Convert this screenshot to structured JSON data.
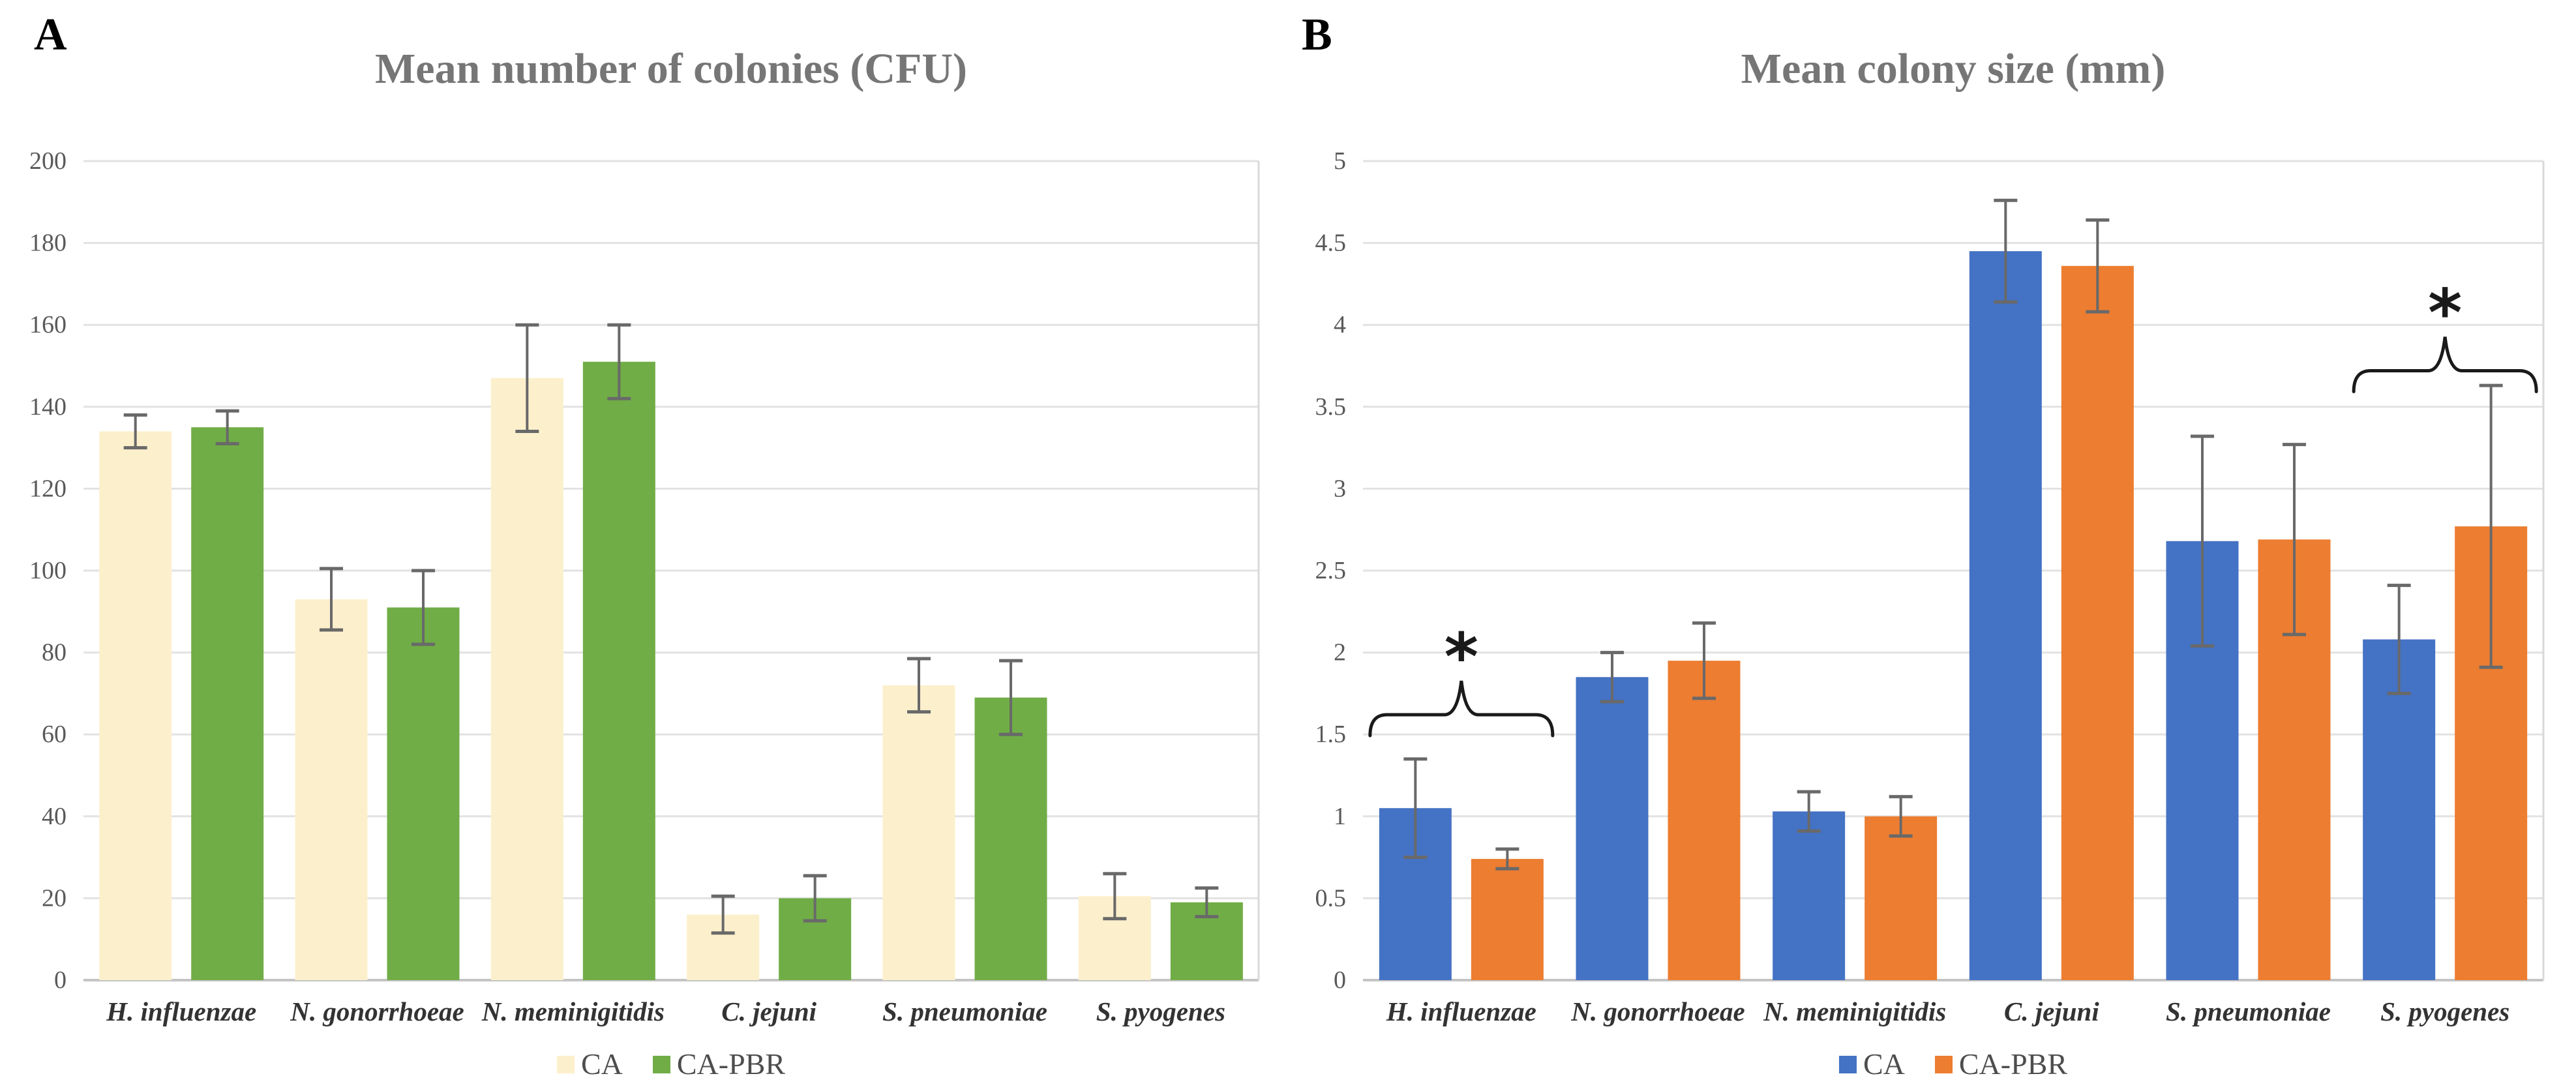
{
  "panels": [
    {
      "label": "A"
    },
    {
      "label": "B"
    }
  ],
  "chart_data": [
    {
      "type": "bar",
      "panel": "A",
      "title": "Mean number of colonies (CFU)",
      "title_color": "#767676",
      "categories": [
        "H. influenzae",
        "N. gonorrhoeae",
        "N. meminigitidis",
        "C. jejuni",
        "S. pneumoniae",
        "S. pyogenes"
      ],
      "series": [
        {
          "name": "CA",
          "color": "#FCF0CC",
          "values": [
            134,
            93,
            147,
            16,
            72,
            20.5
          ],
          "errors": [
            4,
            7.5,
            13,
            4.5,
            6.5,
            5.5
          ]
        },
        {
          "name": "CA-PBR",
          "color": "#70AD47",
          "values": [
            135,
            91,
            151,
            20,
            69,
            19
          ],
          "errors": [
            4,
            9,
            9,
            5.5,
            9,
            3.5
          ]
        }
      ],
      "ylabel": "",
      "xlabel": "",
      "ylim": [
        0,
        200
      ],
      "ytick_step": 20,
      "grid": true,
      "legend_position": "bottom",
      "annotations": []
    },
    {
      "type": "bar",
      "panel": "B",
      "title": "Mean colony size (mm)",
      "title_color": "#767676",
      "categories": [
        "H. influenzae",
        "N. gonorrhoeae",
        "N. meminigitidis",
        "C. jejuni",
        "S. pneumoniae",
        "S. pyogenes"
      ],
      "series": [
        {
          "name": "CA",
          "color": "#4472C4",
          "values": [
            1.05,
            1.85,
            1.03,
            4.45,
            2.68,
            2.08
          ],
          "errors": [
            0.3,
            0.15,
            0.12,
            0.31,
            0.64,
            0.33
          ]
        },
        {
          "name": "CA-PBR",
          "color": "#ED7D31",
          "values": [
            0.74,
            1.95,
            1.0,
            4.36,
            2.69,
            2.77
          ],
          "errors": [
            0.06,
            0.23,
            0.12,
            0.28,
            0.58,
            0.86
          ]
        }
      ],
      "ylabel": "",
      "xlabel": "",
      "ylim": [
        0,
        5
      ],
      "ytick_step": 0.5,
      "grid": true,
      "legend_position": "bottom",
      "annotations": [
        {
          "symbol": "*",
          "category": "H. influenzae",
          "category_index": 0,
          "brace_level": 1.62,
          "asterisk_level": 1.97
        },
        {
          "symbol": "*",
          "category": "S. pyogenes",
          "category_index": 5,
          "brace_level": 3.72,
          "asterisk_level": 4.07
        }
      ]
    }
  ],
  "style_colors": {
    "gridline": "#E2E2E2",
    "baseline": "#C4C4C4",
    "plot_right_border": "#D9D9D9",
    "error_bar": "#696969",
    "tick_label": "#595959",
    "category_label": "#333333",
    "annotation": "#1a1a1a"
  }
}
